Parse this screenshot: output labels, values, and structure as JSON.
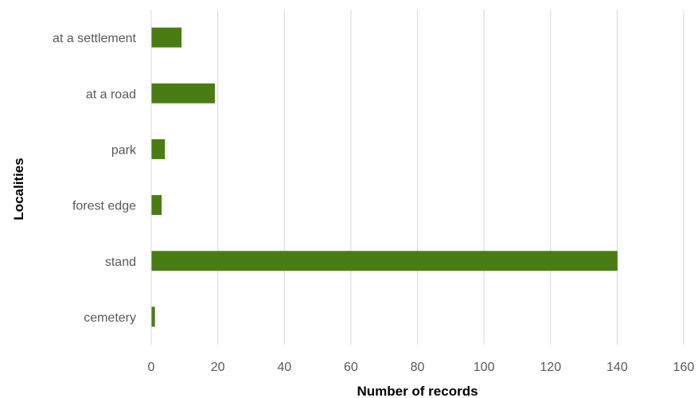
{
  "chart_data": {
    "type": "bar",
    "orientation": "horizontal",
    "categories": [
      "at a settlement",
      "at a road",
      "park",
      "forest edge",
      "stand",
      "cemetery"
    ],
    "values": [
      9,
      19,
      4,
      3,
      140,
      1
    ],
    "xlabel": "Number of records",
    "ylabel": "Localities",
    "xlim": [
      0,
      160
    ],
    "xticks": [
      "0",
      "20",
      "40",
      "60",
      "80",
      "100",
      "120",
      "140",
      "160"
    ],
    "grid": "vertical",
    "bar_color": "#4a7c14"
  }
}
